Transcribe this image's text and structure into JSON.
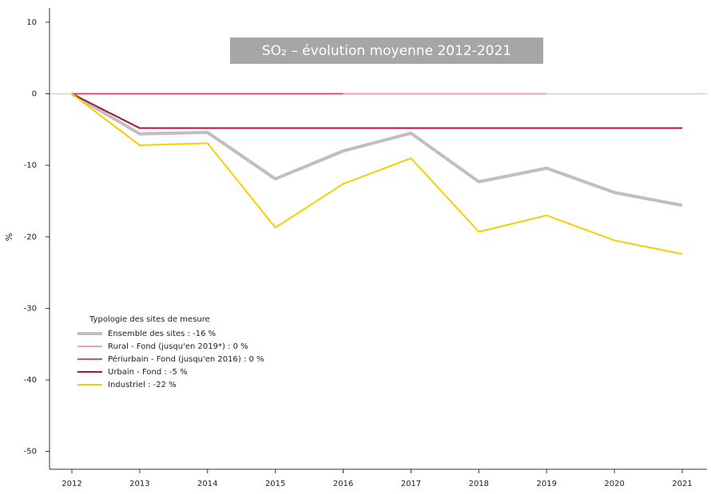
{
  "chart_data": {
    "type": "line",
    "title": "SO₂ – évolution moyenne 2012-2021",
    "y_label": "%",
    "legend_title": "Typologie des sites de mesure",
    "categories": [
      "2012",
      "2013",
      "2014",
      "2015",
      "2016",
      "2017",
      "2018",
      "2019",
      "2020",
      "2021"
    ],
    "series": [
      {
        "name": "Ensemble des sites : -16 %",
        "color": "#bfbfbf",
        "line_width": 4,
        "values": [
          0,
          -5.6,
          -5.4,
          -11.9,
          -8.0,
          -5.5,
          -12.3,
          -10.4,
          -13.8,
          -15.6
        ]
      },
      {
        "name": "Rural - Fond (jusqu'en 2019*) : 0 %",
        "color": "#eaa3b8",
        "line_width": 2,
        "values": [
          0,
          0,
          0,
          0,
          0,
          0,
          0,
          0,
          null,
          null
        ]
      },
      {
        "name": "Périurbain - Fond (jusqu'en 2016) : 0 %",
        "color": "#d9506e",
        "line_width": 2,
        "values": [
          0,
          0,
          0,
          0,
          0,
          null,
          null,
          null,
          null,
          null
        ]
      },
      {
        "name": "Urbain - Fond : -5 %",
        "color": "#a0193c",
        "line_width": 2,
        "values": [
          0,
          -4.8,
          -4.8,
          -4.8,
          -4.8,
          -4.8,
          -4.8,
          -4.8,
          -4.8,
          -4.8
        ]
      },
      {
        "name": "Industriel : -22 %",
        "color": "#f5d000",
        "line_width": 2,
        "values": [
          0,
          -7.2,
          -6.9,
          -18.7,
          -12.6,
          -9.0,
          -19.3,
          -17.0,
          -20.5,
          -22.4
        ]
      }
    ],
    "ylim": [
      -52.5,
      12
    ],
    "yticks": [
      -50,
      -40,
      -30,
      -20,
      -10,
      0,
      10
    ]
  }
}
